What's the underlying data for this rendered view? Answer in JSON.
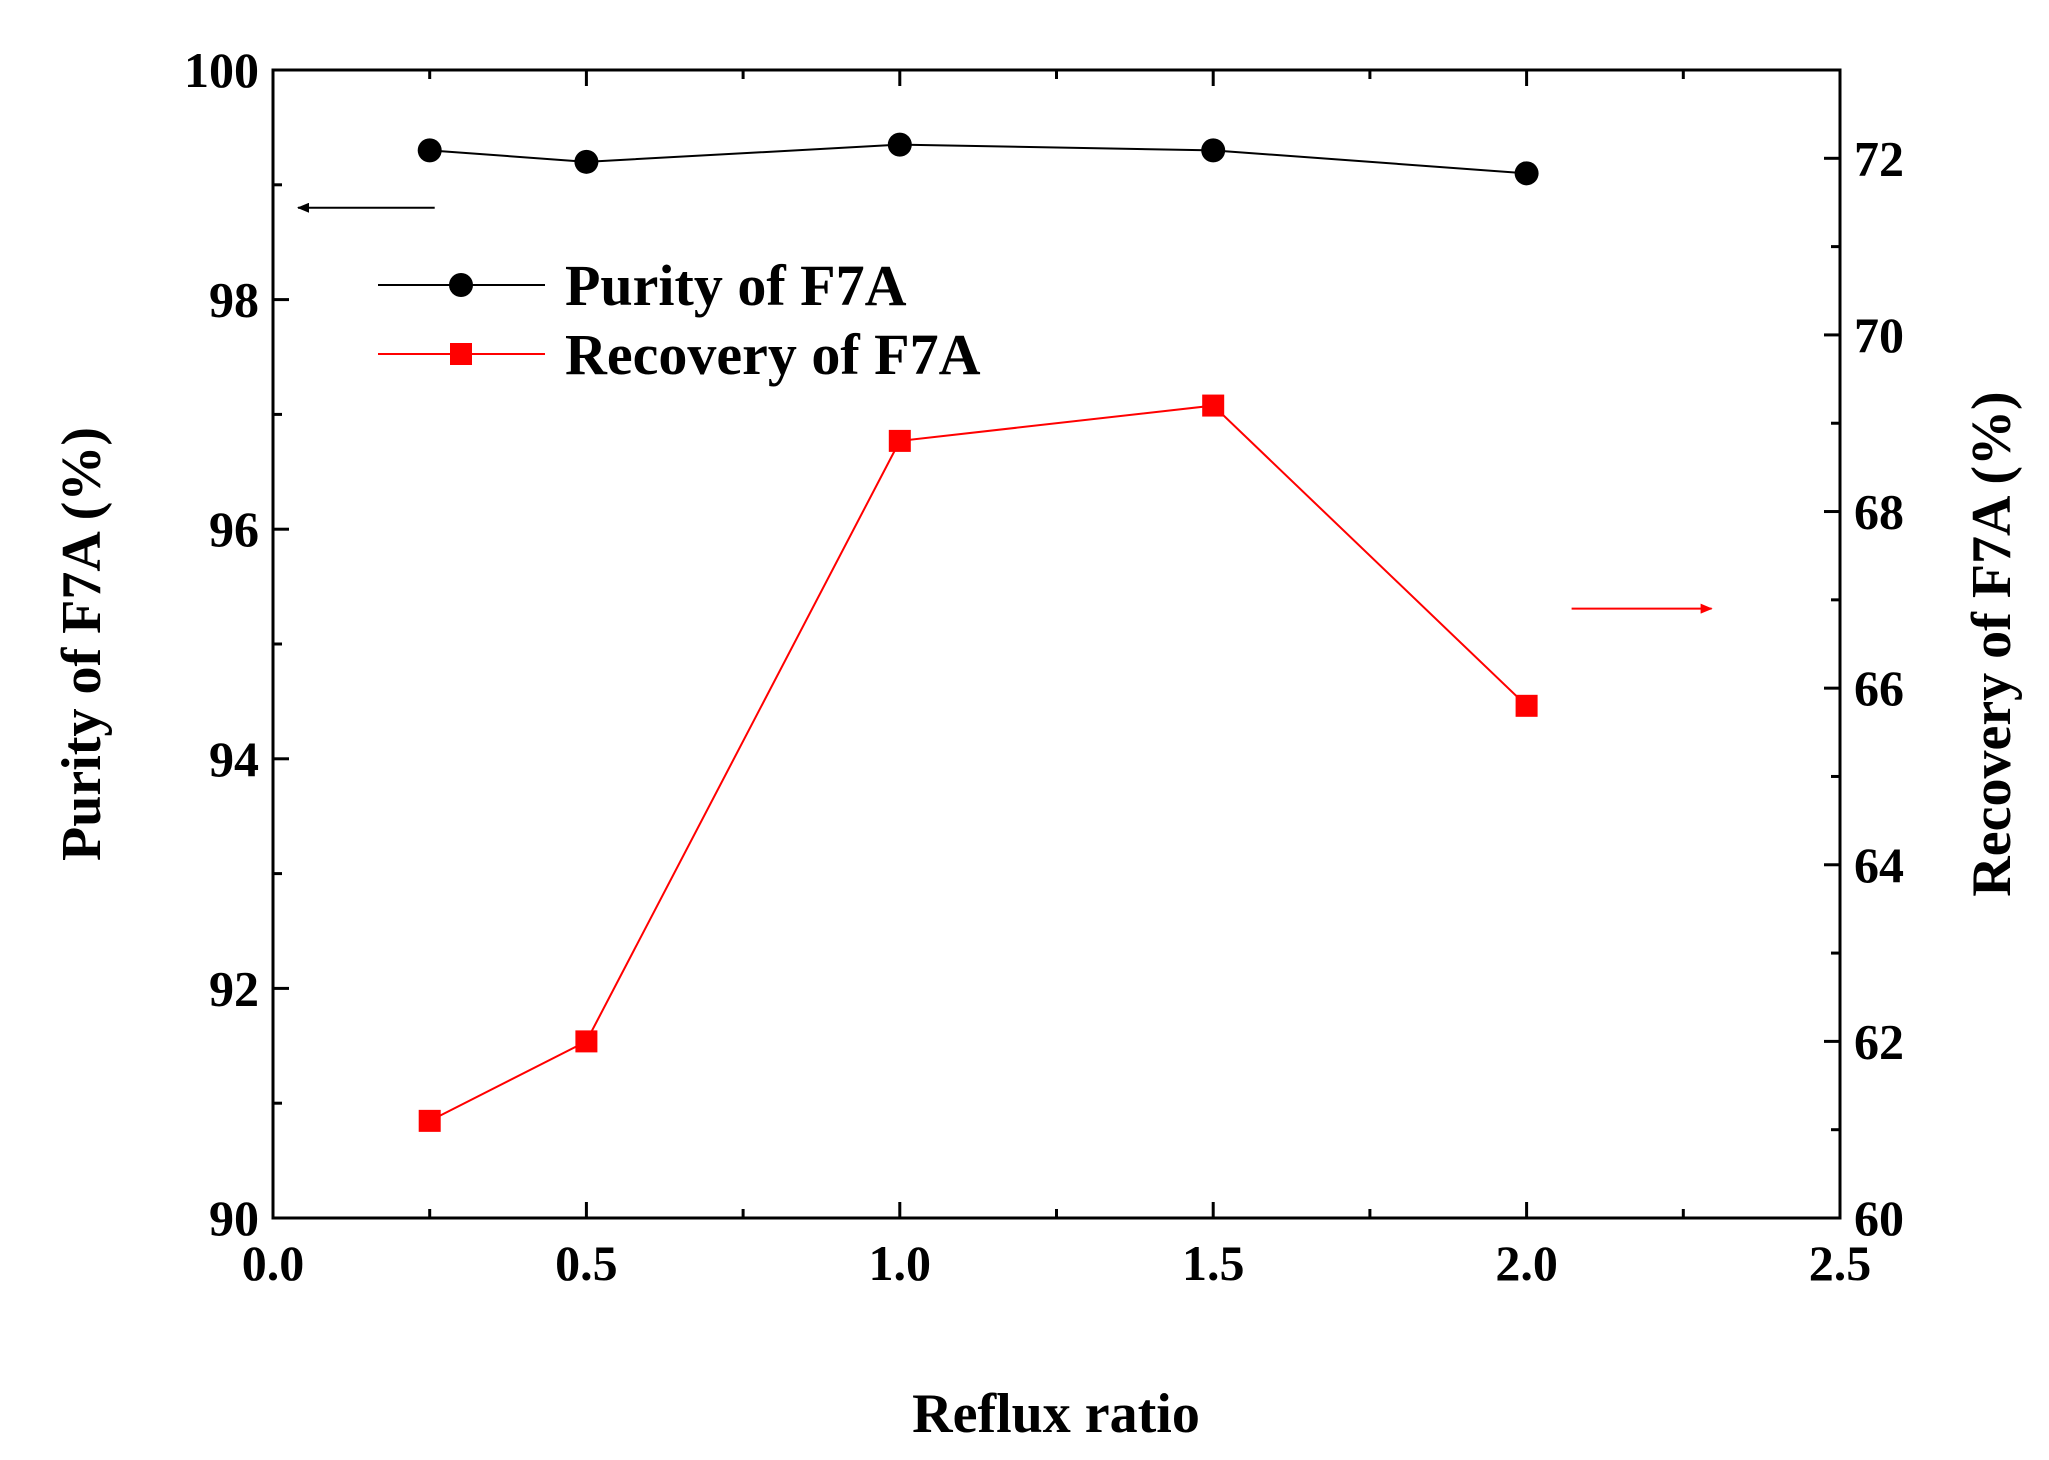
{
  "chart_data": {
    "type": "line",
    "xlabel": "Reflux ratio",
    "ylabel_left": "Purity of F7A (%)",
    "ylabel_right": "Recovery of F7A (%)",
    "xlim": [
      0.0,
      2.5
    ],
    "ylim_left": [
      90,
      100
    ],
    "ylim_right": [
      60,
      73
    ],
    "x_ticks": [
      "0.0",
      "0.5",
      "1.0",
      "1.5",
      "2.0",
      "2.5"
    ],
    "y_left_ticks": [
      "90",
      "92",
      "94",
      "96",
      "98",
      "100"
    ],
    "y_right_ticks": [
      "60",
      "62",
      "64",
      "66",
      "68",
      "70",
      "72"
    ],
    "legend_position": "upper-left",
    "grid": false,
    "series": [
      {
        "name": "Purity of F7A",
        "axis": "left",
        "color": "#000000",
        "marker": "circle",
        "x": [
          0.25,
          0.5,
          1.0,
          1.5,
          2.0
        ],
        "values": [
          99.3,
          99.2,
          99.35,
          99.3,
          99.1
        ]
      },
      {
        "name": "Recovery of F7A",
        "axis": "right",
        "color": "#ff0000",
        "marker": "square",
        "x": [
          0.25,
          0.5,
          1.0,
          1.5,
          2.0
        ],
        "values": [
          61.1,
          62.0,
          68.8,
          69.2,
          65.8
        ]
      }
    ],
    "annotations": [
      {
        "type": "arrow",
        "direction": "left",
        "series": "Purity of F7A",
        "color": "#000000",
        "x": 0.25,
        "y_left": 98.8
      },
      {
        "type": "arrow",
        "direction": "right",
        "series": "Recovery of F7A",
        "color": "#ff0000",
        "x": 2.0,
        "y_right": 66.9
      }
    ]
  }
}
